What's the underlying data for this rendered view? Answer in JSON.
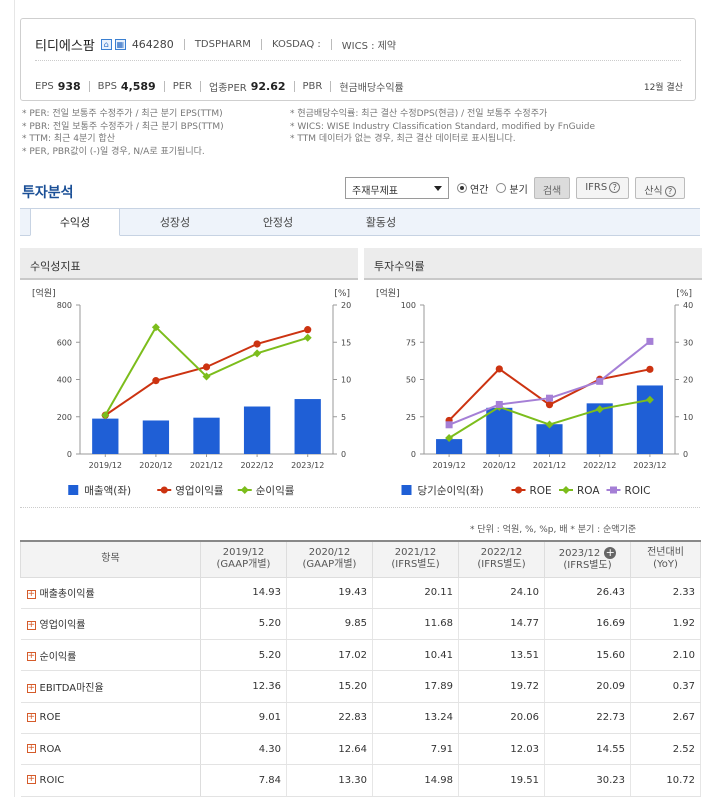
{
  "company": {
    "name": "티디에스팜",
    "code": "464280",
    "eng_name": "TDSPHARM",
    "market": "KOSDAQ :",
    "wics": "WICS : 제약",
    "icons": [
      "home-icon",
      "building-icon"
    ]
  },
  "metrics": {
    "eps_label": "EPS",
    "eps_value": "938",
    "bps_label": "BPS",
    "bps_value": "4,589",
    "per_label": "PER",
    "industry_per_label": "업종PER",
    "industry_per_value": "92.62",
    "pbr_label": "PBR",
    "dividend_label": "현금배당수익률",
    "settlement": "12월 결산"
  },
  "notes_left": [
    "* PER: 전일 보통주 수정주가 / 최근 분기 EPS(TTM)",
    "* PBR: 전일 보통주 수정주가 / 최근 분기 BPS(TTM)",
    "* TTM: 최근 4분기 합산",
    "* PER, PBR값이 (-)일 경우, N/A로 표기됩니다."
  ],
  "notes_right": [
    "* 현금배당수익률: 최근 결산 수정DPS(현금) / 전일 보통주 수정주가",
    "* WICS: WISE Industry Classification Standard, modified by FnGuide",
    "* TTM 데이터가 없는 경우, 최근 결산 데이터로 표시됩니다."
  ],
  "section_title": "투자분석",
  "controls": {
    "select_value": "주재무제표",
    "radio_annual": "연간",
    "radio_quarter": "분기",
    "search_button": "검색",
    "ifrs_button": "IFRS",
    "formula_button": "산식"
  },
  "tabs": [
    "수익성",
    "성장성",
    "안정성",
    "활동성"
  ],
  "panels": {
    "left_title": "수익성지표",
    "right_title": "투자수익률"
  },
  "chart_data": [
    {
      "type": "bar",
      "categories": [
        "2019/12",
        "2020/12",
        "2021/12",
        "2022/12",
        "2023/12"
      ],
      "left_unit": "[억원]",
      "right_unit": "[%]",
      "left_ticks": [
        "800",
        "600",
        "400",
        "200",
        "0"
      ],
      "right_ticks": [
        "20",
        "15",
        "10",
        "5",
        "0"
      ],
      "ylim_left": [
        0,
        800
      ],
      "ylim_right": [
        0,
        20
      ],
      "bars": {
        "name": "매출액(좌)",
        "color": "#1f5fd6",
        "values": [
          190,
          180,
          195,
          255,
          295
        ]
      },
      "lines": [
        {
          "name": "영업이익률",
          "color": "#cc3311",
          "marker": "circle",
          "values": [
            5.2,
            9.85,
            11.68,
            14.77,
            16.69
          ]
        },
        {
          "name": "순이익률",
          "color": "#7cbd1c",
          "marker": "diamond",
          "values": [
            5.2,
            17.02,
            10.41,
            13.51,
            15.6
          ]
        }
      ],
      "legend_position": "bottom"
    },
    {
      "type": "bar",
      "categories": [
        "2019/12",
        "2020/12",
        "2021/12",
        "2022/12",
        "2023/12"
      ],
      "left_unit": "[억원]",
      "right_unit": "[%]",
      "left_ticks": [
        "100",
        "75",
        "50",
        "25",
        "0"
      ],
      "right_ticks": [
        "40",
        "30",
        "20",
        "10",
        "0"
      ],
      "ylim_left": [
        0,
        100
      ],
      "ylim_right": [
        0,
        40
      ],
      "bars": {
        "name": "당기순이익(좌)",
        "color": "#1f5fd6",
        "values": [
          10,
          31,
          20,
          34,
          46
        ]
      },
      "lines": [
        {
          "name": "ROE",
          "color": "#cc3311",
          "marker": "circle",
          "values": [
            9.01,
            22.83,
            13.24,
            20.06,
            22.73
          ]
        },
        {
          "name": "ROA",
          "color": "#7cbd1c",
          "marker": "diamond",
          "values": [
            4.3,
            12.64,
            7.91,
            12.03,
            14.55
          ]
        },
        {
          "name": "ROIC",
          "color": "#a57fd6",
          "marker": "square",
          "values": [
            7.84,
            13.3,
            14.98,
            19.51,
            30.23
          ]
        }
      ],
      "legend_position": "bottom"
    }
  ],
  "unit_note": "* 단위 : 억원, %, %p, 배    * 분기 : 순액기준",
  "table": {
    "headers": [
      {
        "l1": "항목",
        "l2": ""
      },
      {
        "l1": "2019/12",
        "l2": "(GAAP개별)"
      },
      {
        "l1": "2020/12",
        "l2": "(GAAP개별)"
      },
      {
        "l1": "2021/12",
        "l2": "(IFRS별도)"
      },
      {
        "l1": "2022/12",
        "l2": "(IFRS별도)"
      },
      {
        "l1": "2023/12",
        "l2": "(IFRS별도)"
      },
      {
        "l1": "전년대비",
        "l2": "(YoY)"
      }
    ],
    "rows": [
      {
        "label": "매출총이익률",
        "values": [
          "14.93",
          "19.43",
          "20.11",
          "24.10",
          "26.43",
          "2.33"
        ]
      },
      {
        "label": "영업이익률",
        "values": [
          "5.20",
          "9.85",
          "11.68",
          "14.77",
          "16.69",
          "1.92"
        ]
      },
      {
        "label": "순이익률",
        "values": [
          "5.20",
          "17.02",
          "10.41",
          "13.51",
          "15.60",
          "2.10"
        ]
      },
      {
        "label": "EBITDA마진율",
        "values": [
          "12.36",
          "15.20",
          "17.89",
          "19.72",
          "20.09",
          "0.37"
        ]
      },
      {
        "label": "ROE",
        "values": [
          "9.01",
          "22.83",
          "13.24",
          "20.06",
          "22.73",
          "2.67"
        ]
      },
      {
        "label": "ROA",
        "values": [
          "4.30",
          "12.64",
          "7.91",
          "12.03",
          "14.55",
          "2.52"
        ]
      },
      {
        "label": "ROIC",
        "values": [
          "7.84",
          "13.30",
          "14.98",
          "19.51",
          "30.23",
          "10.72"
        ]
      }
    ]
  }
}
